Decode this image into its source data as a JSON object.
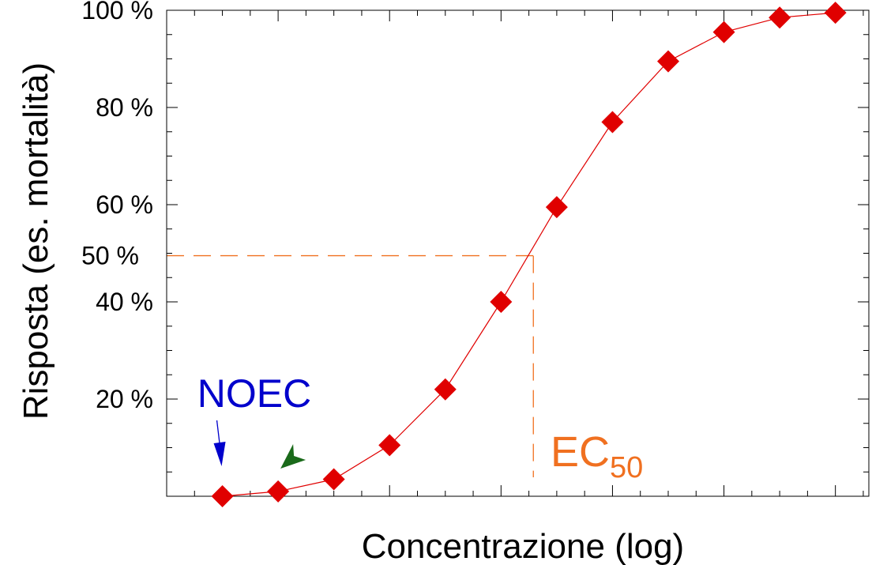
{
  "colors": {
    "series": "#e00000",
    "marker": "#e00000",
    "reference": "#f07020",
    "noec": "#0000cc",
    "arrowhead": "#1a6a1a",
    "axis": "#000000"
  },
  "chart_data": {
    "type": "scatter",
    "xlabel": "Concentrazione (log)",
    "ylabel": "Risposta (es. mortalità)",
    "ylim": [
      0,
      100
    ],
    "xlim": [
      0,
      12.6
    ],
    "y_ticks": [
      {
        "value": 20,
        "label": "20 %"
      },
      {
        "value": 40,
        "label": "40 %"
      },
      {
        "value": 60,
        "label": "60 %"
      },
      {
        "value": 80,
        "label": "80 %"
      },
      {
        "value": 100,
        "label": "100 %"
      }
    ],
    "series": [
      {
        "x": [
          1,
          2,
          3,
          4,
          5,
          6,
          7,
          8,
          9,
          10,
          11,
          12
        ],
        "y": [
          0,
          1,
          3.5,
          10.5,
          22,
          40,
          59.5,
          77,
          89.5,
          95.5,
          98.5,
          99.5
        ]
      }
    ],
    "reference": {
      "y": 49.5,
      "x": 6.58,
      "y_label": "50 %",
      "x_label": "EC",
      "x_label_sub": "50"
    },
    "annotations": {
      "noec": {
        "label": "NOEC",
        "x": 1
      },
      "arrowhead_x": 2
    }
  }
}
